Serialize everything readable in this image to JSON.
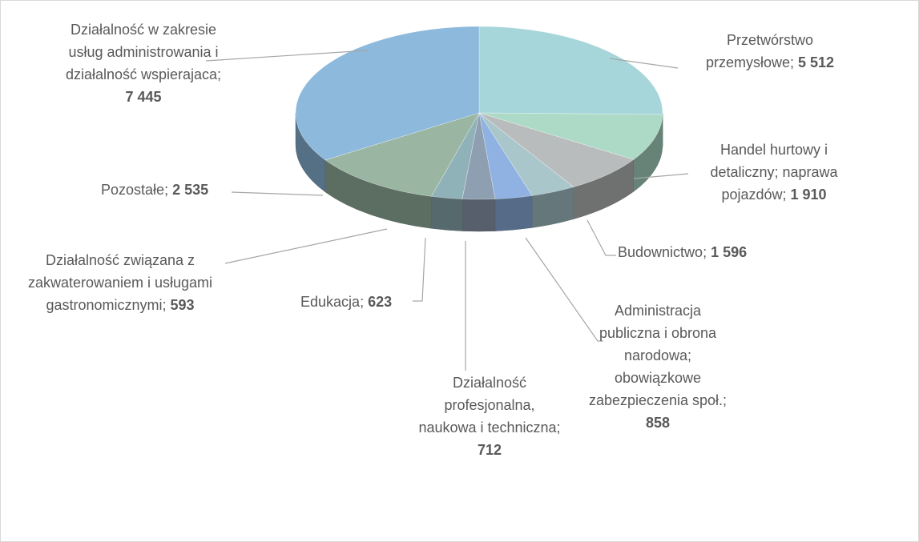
{
  "chart_data": {
    "type": "pie3d",
    "categories": [
      "Przetwórstwo przemysłowe",
      "Handel hurtowy i detaliczny; naprawa pojazdów",
      "Budownictwo",
      "Administracja publiczna i obrona narodowa; obowiązkowe zabezpieczenia społ.",
      "Działalność profesjonalna, naukowa i techniczna",
      "Edukacja",
      "Działalność związana z zakwaterowaniem i usługami gastronomicznymi",
      "Pozostałe",
      "Działalność w zakresie usług administrowania i działalność wspierajaca"
    ],
    "values": [
      5512,
      1910,
      1596,
      858,
      712,
      623,
      593,
      2535,
      7445
    ],
    "value_labels": [
      "5 512",
      "1 910",
      "1 596",
      "858",
      "712",
      "623",
      "593",
      "2 535",
      "7 445"
    ],
    "label_separator": "; ",
    "colors": [
      "#a6d6da",
      "#acdac6",
      "#b9bcbd",
      "#a9c6cb",
      "#8fb2e2",
      "#8f9fb2",
      "#8fb1b8",
      "#9ab6a2",
      "#8db9dc"
    ]
  }
}
